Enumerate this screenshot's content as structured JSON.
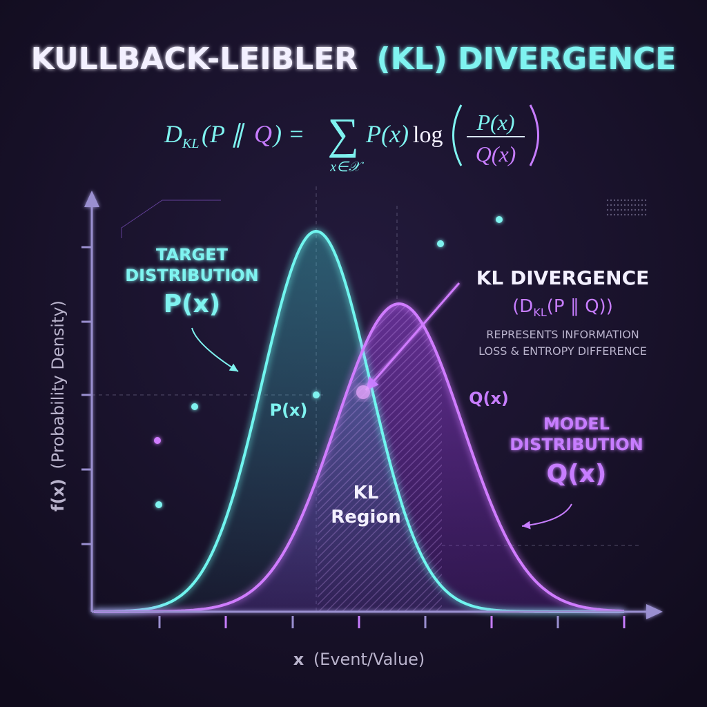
{
  "title": {
    "part1": "KULLBACK-LEIBLER",
    "part2": "(KL) DIVERGENCE"
  },
  "formula": {
    "d": "D",
    "d_sub": "KL",
    "args_left": "(P ∥",
    "args_q": "Q",
    "args_right": ") =",
    "sum": "∑",
    "sum_index": "x∈𝒳",
    "term": "P(x)",
    "log": "log",
    "numerator": "P(x)",
    "denominator": "Q(x)"
  },
  "axes": {
    "y_label_symbol": "f(x)",
    "y_label_text": "(Probability Density)",
    "x_label_symbol": "x",
    "x_label_text": "(Event/Value)"
  },
  "target": {
    "lines": [
      "TARGET",
      "DISTRIBUTION"
    ],
    "symbol": "P(x)"
  },
  "kl_callout": {
    "title": "KL DIVERGENCE",
    "formula_left": "(D",
    "formula_sub": "KL",
    "formula_right": "(P ∥ Q))",
    "description": [
      "REPRESENTS INFORMATION",
      "LOSS & ENTROPY DIFFERENCE"
    ]
  },
  "peak_label": "P(x)",
  "q_curve_label": "Q(x)",
  "model": {
    "lines": [
      "MODEL",
      "DISTRIBUTION"
    ],
    "symbol": "Q(x)"
  },
  "region": {
    "lines": [
      "KL",
      "Region"
    ]
  }
}
